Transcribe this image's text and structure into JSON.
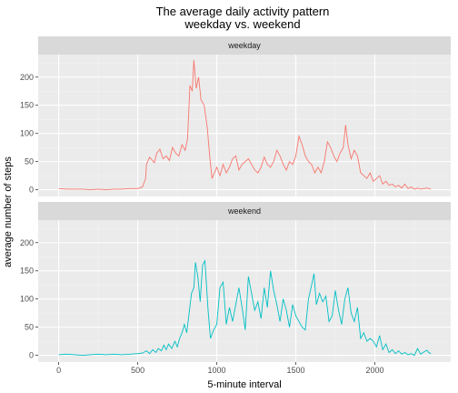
{
  "chart_data": {
    "type": "line",
    "title": "The average daily activity pattern",
    "subtitle": "weekday vs. weekend",
    "xlabel": "5-minute interval",
    "ylabel": "average number of steps",
    "xlim": [
      -130,
      2480
    ],
    "ylim": [
      -12,
      240
    ],
    "x_ticks": [
      0,
      500,
      1000,
      1500,
      2000
    ],
    "y_ticks": [
      0,
      50,
      100,
      150,
      200
    ],
    "grid": true,
    "legend": "none",
    "panels": [
      {
        "label": "weekday",
        "color": "#F8766D",
        "points": [
          [
            0,
            2
          ],
          [
            50,
            1
          ],
          [
            100,
            1
          ],
          [
            150,
            1
          ],
          [
            200,
            0
          ],
          [
            250,
            1
          ],
          [
            300,
            0
          ],
          [
            350,
            1
          ],
          [
            400,
            1
          ],
          [
            450,
            2
          ],
          [
            500,
            2
          ],
          [
            530,
            5
          ],
          [
            550,
            20
          ],
          [
            555,
            45
          ],
          [
            575,
            58
          ],
          [
            605,
            48
          ],
          [
            620,
            65
          ],
          [
            640,
            72
          ],
          [
            660,
            55
          ],
          [
            680,
            60
          ],
          [
            700,
            52
          ],
          [
            720,
            75
          ],
          [
            740,
            65
          ],
          [
            760,
            60
          ],
          [
            780,
            80
          ],
          [
            800,
            70
          ],
          [
            815,
            90
          ],
          [
            830,
            185
          ],
          [
            845,
            175
          ],
          [
            855,
            230
          ],
          [
            870,
            180
          ],
          [
            885,
            200
          ],
          [
            900,
            160
          ],
          [
            920,
            150
          ],
          [
            940,
            110
          ],
          [
            955,
            60
          ],
          [
            970,
            20
          ],
          [
            985,
            30
          ],
          [
            1000,
            40
          ],
          [
            1020,
            25
          ],
          [
            1040,
            45
          ],
          [
            1060,
            30
          ],
          [
            1080,
            40
          ],
          [
            1100,
            55
          ],
          [
            1120,
            60
          ],
          [
            1140,
            35
          ],
          [
            1160,
            45
          ],
          [
            1180,
            50
          ],
          [
            1200,
            55
          ],
          [
            1220,
            45
          ],
          [
            1240,
            35
          ],
          [
            1260,
            30
          ],
          [
            1280,
            40
          ],
          [
            1300,
            58
          ],
          [
            1320,
            45
          ],
          [
            1340,
            40
          ],
          [
            1360,
            50
          ],
          [
            1380,
            70
          ],
          [
            1400,
            60
          ],
          [
            1420,
            45
          ],
          [
            1440,
            35
          ],
          [
            1460,
            50
          ],
          [
            1480,
            45
          ],
          [
            1500,
            60
          ],
          [
            1520,
            95
          ],
          [
            1540,
            80
          ],
          [
            1560,
            60
          ],
          [
            1580,
            50
          ],
          [
            1600,
            45
          ],
          [
            1620,
            30
          ],
          [
            1640,
            40
          ],
          [
            1660,
            30
          ],
          [
            1680,
            50
          ],
          [
            1700,
            85
          ],
          [
            1720,
            75
          ],
          [
            1740,
            60
          ],
          [
            1760,
            50
          ],
          [
            1780,
            65
          ],
          [
            1800,
            75
          ],
          [
            1815,
            115
          ],
          [
            1830,
            80
          ],
          [
            1850,
            55
          ],
          [
            1870,
            70
          ],
          [
            1890,
            60
          ],
          [
            1910,
            30
          ],
          [
            1930,
            25
          ],
          [
            1950,
            20
          ],
          [
            1970,
            30
          ],
          [
            1990,
            15
          ],
          [
            2010,
            20
          ],
          [
            2030,
            25
          ],
          [
            2050,
            10
          ],
          [
            2070,
            15
          ],
          [
            2090,
            8
          ],
          [
            2110,
            10
          ],
          [
            2130,
            5
          ],
          [
            2150,
            8
          ],
          [
            2170,
            3
          ],
          [
            2190,
            10
          ],
          [
            2210,
            2
          ],
          [
            2230,
            5
          ],
          [
            2250,
            1
          ],
          [
            2270,
            3
          ],
          [
            2290,
            1
          ],
          [
            2310,
            2
          ],
          [
            2330,
            3
          ],
          [
            2355,
            1
          ]
        ]
      },
      {
        "label": "weekend",
        "color": "#00BFC4",
        "points": [
          [
            0,
            1
          ],
          [
            50,
            2
          ],
          [
            100,
            1
          ],
          [
            150,
            0
          ],
          [
            200,
            1
          ],
          [
            250,
            2
          ],
          [
            300,
            1
          ],
          [
            350,
            2
          ],
          [
            400,
            1
          ],
          [
            450,
            2
          ],
          [
            500,
            3
          ],
          [
            530,
            4
          ],
          [
            555,
            8
          ],
          [
            575,
            3
          ],
          [
            595,
            10
          ],
          [
            615,
            5
          ],
          [
            630,
            12
          ],
          [
            650,
            8
          ],
          [
            665,
            18
          ],
          [
            680,
            10
          ],
          [
            695,
            20
          ],
          [
            715,
            12
          ],
          [
            735,
            25
          ],
          [
            750,
            15
          ],
          [
            765,
            30
          ],
          [
            780,
            40
          ],
          [
            795,
            55
          ],
          [
            810,
            40
          ],
          [
            825,
            75
          ],
          [
            840,
            110
          ],
          [
            855,
            120
          ],
          [
            865,
            165
          ],
          [
            880,
            140
          ],
          [
            895,
            95
          ],
          [
            910,
            160
          ],
          [
            925,
            168
          ],
          [
            945,
            80
          ],
          [
            960,
            30
          ],
          [
            980,
            45
          ],
          [
            1000,
            55
          ],
          [
            1020,
            120
          ],
          [
            1040,
            130
          ],
          [
            1060,
            55
          ],
          [
            1080,
            85
          ],
          [
            1100,
            60
          ],
          [
            1120,
            90
          ],
          [
            1140,
            120
          ],
          [
            1160,
            85
          ],
          [
            1180,
            45
          ],
          [
            1200,
            140
          ],
          [
            1220,
            110
          ],
          [
            1240,
            80
          ],
          [
            1260,
            95
          ],
          [
            1280,
            65
          ],
          [
            1300,
            120
          ],
          [
            1320,
            85
          ],
          [
            1340,
            150
          ],
          [
            1360,
            115
          ],
          [
            1380,
            90
          ],
          [
            1400,
            60
          ],
          [
            1420,
            100
          ],
          [
            1440,
            80
          ],
          [
            1460,
            50
          ],
          [
            1480,
            90
          ],
          [
            1500,
            70
          ],
          [
            1520,
            60
          ],
          [
            1540,
            50
          ],
          [
            1560,
            45
          ],
          [
            1580,
            100
          ],
          [
            1600,
            125
          ],
          [
            1615,
            145
          ],
          [
            1630,
            90
          ],
          [
            1650,
            110
          ],
          [
            1670,
            95
          ],
          [
            1690,
            105
          ],
          [
            1710,
            60
          ],
          [
            1730,
            70
          ],
          [
            1750,
            115
          ],
          [
            1770,
            80
          ],
          [
            1790,
            55
          ],
          [
            1810,
            100
          ],
          [
            1830,
            120
          ],
          [
            1850,
            75
          ],
          [
            1870,
            60
          ],
          [
            1890,
            85
          ],
          [
            1910,
            30
          ],
          [
            1930,
            40
          ],
          [
            1950,
            25
          ],
          [
            1970,
            30
          ],
          [
            1990,
            25
          ],
          [
            2010,
            15
          ],
          [
            2030,
            35
          ],
          [
            2050,
            10
          ],
          [
            2070,
            20
          ],
          [
            2090,
            5
          ],
          [
            2110,
            10
          ],
          [
            2130,
            3
          ],
          [
            2150,
            8
          ],
          [
            2170,
            2
          ],
          [
            2190,
            5
          ],
          [
            2210,
            1
          ],
          [
            2230,
            3
          ],
          [
            2250,
            0
          ],
          [
            2270,
            12
          ],
          [
            2290,
            2
          ],
          [
            2310,
            6
          ],
          [
            2330,
            9
          ],
          [
            2340,
            5
          ],
          [
            2355,
            3
          ]
        ]
      }
    ]
  }
}
